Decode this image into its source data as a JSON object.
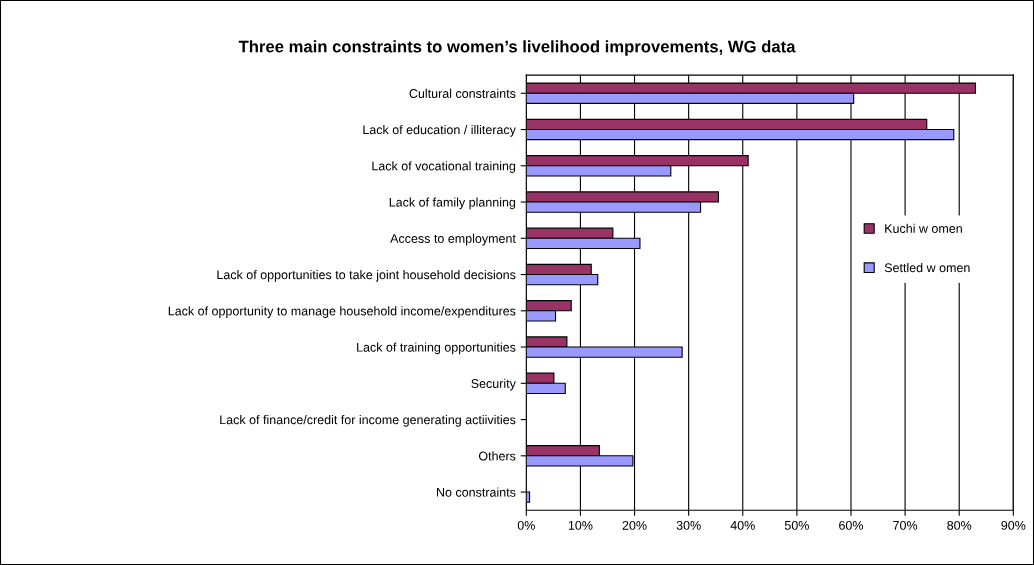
{
  "chart_data": {
    "type": "bar",
    "orientation": "horizontal",
    "title": "Three main constraints to women’s livelihood improvements, WG data",
    "categories": [
      "Cultural constraints",
      "Lack of education / illiteracy",
      "Lack of vocational training",
      "Lack of family planning",
      "Access to employment",
      "Lack of opportunities to take joint household decisions",
      "Lack of opportunity to manage household income/expenditures",
      "Lack of training opportunities",
      "Security",
      "Lack of finance/credit for income generating actiivities",
      "Others",
      "No constraints"
    ],
    "series": [
      {
        "name": "Kuchi w omen",
        "color": "#993366",
        "values": [
          83,
          74,
          41,
          35.5,
          16,
          12,
          8.3,
          7.5,
          5.1,
          null,
          13.5,
          null
        ]
      },
      {
        "name": "Settled w omen",
        "color": "#9999ff",
        "values": [
          60.5,
          79,
          26.7,
          32.2,
          21,
          13.2,
          5.4,
          28.8,
          7.2,
          null,
          19.7,
          0.6
        ]
      }
    ],
    "xlim": [
      0,
      90
    ],
    "xticks": [
      {
        "value": 0,
        "label": "0%"
      },
      {
        "value": 10,
        "label": "10%"
      },
      {
        "value": 20,
        "label": "20%"
      },
      {
        "value": 30,
        "label": "30%"
      },
      {
        "value": 40,
        "label": "40%"
      },
      {
        "value": 50,
        "label": "50%"
      },
      {
        "value": 60,
        "label": "60%"
      },
      {
        "value": 70,
        "label": "70%"
      },
      {
        "value": 80,
        "label": "80%"
      },
      {
        "value": 90,
        "label": "90%"
      }
    ],
    "grid": "x",
    "legend": "right"
  }
}
